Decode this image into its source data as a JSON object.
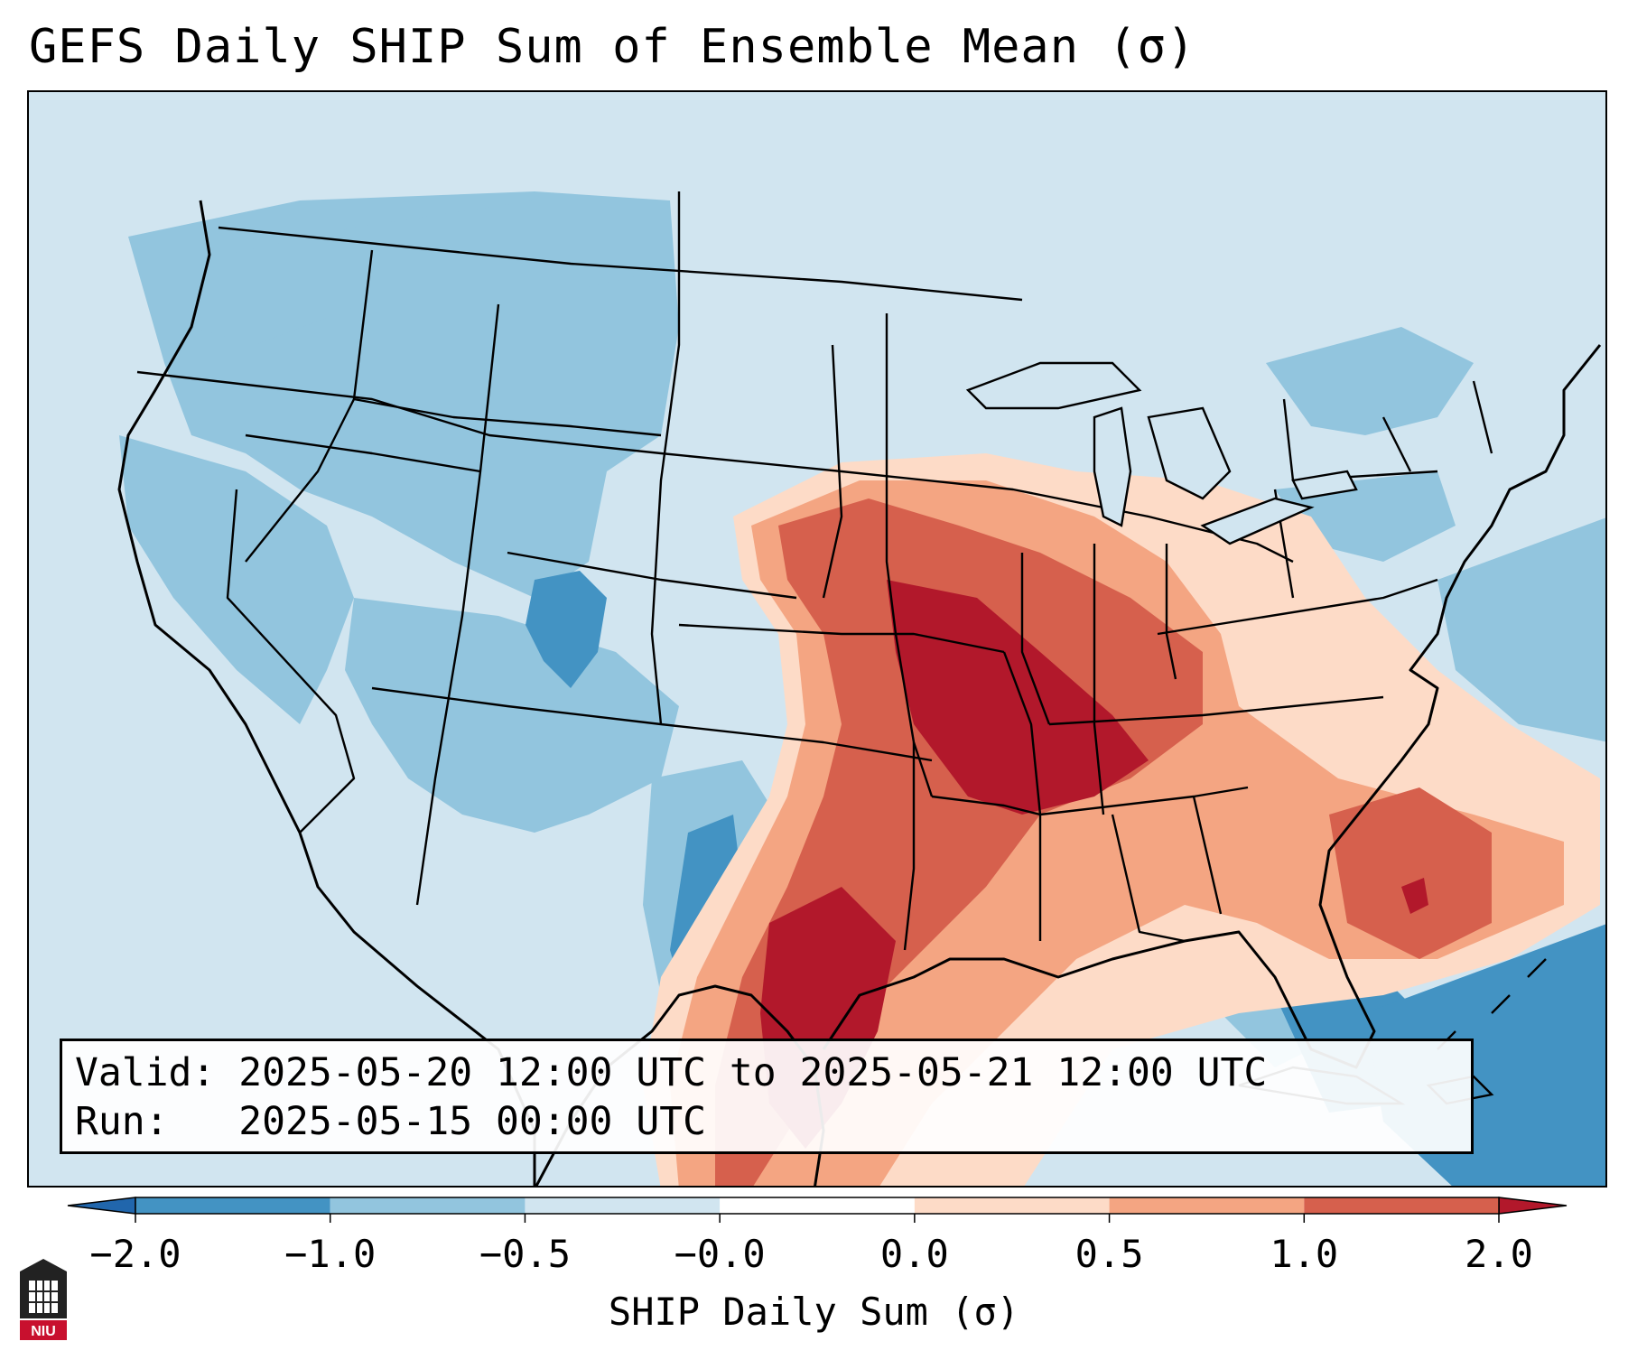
{
  "title": "GEFS Daily SHIP Sum of Ensemble Mean (σ)",
  "info": {
    "valid_label": "Valid:",
    "valid_value": "2025-05-20 12:00 UTC to 2025-05-21 12:00 UTC",
    "run_label": "Run:",
    "run_value": "2025-05-15 00:00 UTC"
  },
  "colorbar": {
    "label": "SHIP Daily Sum (σ)",
    "ticks": [
      "−2.0",
      "−1.0",
      "−0.5",
      "−0.0",
      "0.0",
      "0.5",
      "1.0",
      "2.0"
    ],
    "colors": [
      "#2166ac",
      "#4393c3",
      "#92c5de",
      "#d1e5f0",
      "#ffffff",
      "#fddbc7",
      "#f4a582",
      "#d6604d",
      "#b2182b"
    ]
  },
  "logo": {
    "text": "NIU"
  }
}
